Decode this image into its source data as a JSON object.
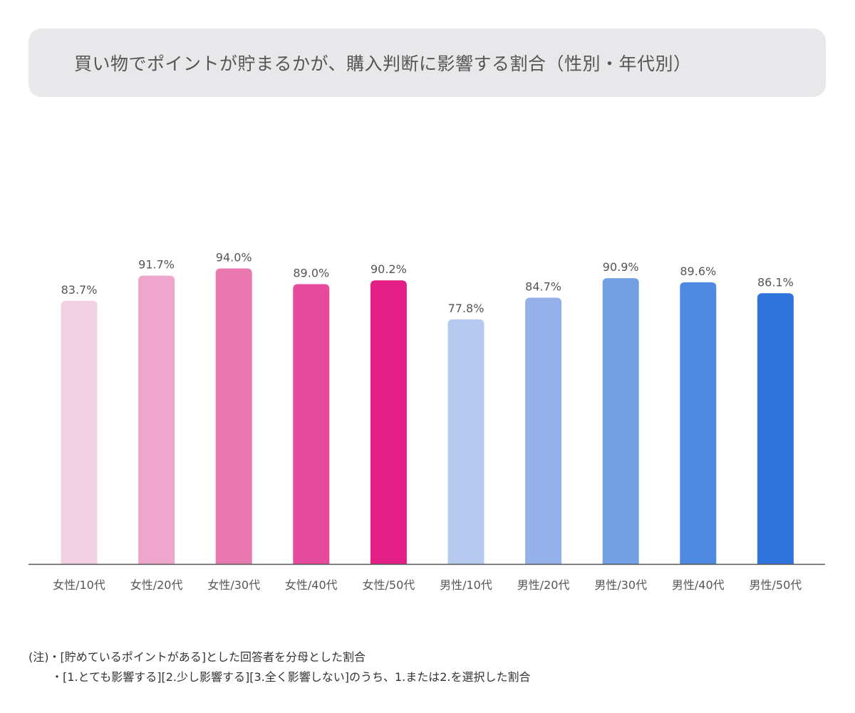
{
  "title": "買い物でポイントが貯まるかが、購入判断に影響する割合（性別・年代別）",
  "chart_data": {
    "type": "bar",
    "title": "買い物でポイントが貯まるかが、購入判断に影響する割合（性別・年代別）",
    "categories": [
      "女性/10代",
      "女性/20代",
      "女性/30代",
      "女性/40代",
      "女性/50代",
      "男性/10代",
      "男性/20代",
      "男性/30代",
      "男性/40代",
      "男性/50代"
    ],
    "values": [
      83.7,
      91.7,
      94.0,
      89.0,
      90.2,
      77.8,
      84.7,
      90.9,
      89.6,
      86.1
    ],
    "data_labels": [
      "83.7%",
      "91.7%",
      "94.0%",
      "89.0%",
      "90.2%",
      "77.8%",
      "84.7%",
      "90.9%",
      "89.6%",
      "86.1%"
    ],
    "colors": [
      "#f0d0e2",
      "#eea6cc",
      "#ea78b0",
      "#e54a9c",
      "#e31e85",
      "#b6c9ef",
      "#94b1ea",
      "#739fe5",
      "#4f8ae2",
      "#2f73dc"
    ],
    "unit": "%",
    "ylim": [
      0,
      100
    ],
    "grid": false,
    "xlabel": "",
    "ylabel": ""
  },
  "notes": {
    "line1": "(注)・[貯めているポイントがある]とした回答者を分母とした割合",
    "line2": "・[1.とても影響する][2.少し影響する][3.全く影響しない]のうち、1.または2.を選択した割合"
  }
}
